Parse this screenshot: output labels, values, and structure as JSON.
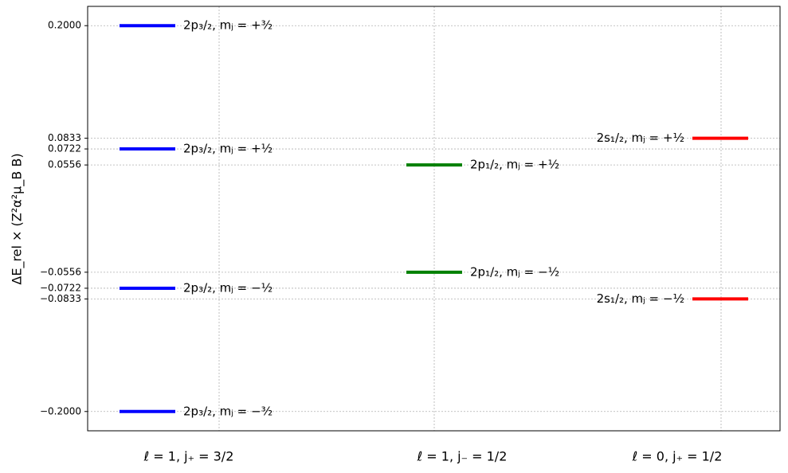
{
  "chart_data": {
    "type": "levels",
    "ylabel": "ΔE_rel × (Z²α²μ_B B)",
    "ylim": [
      -0.22,
      0.22
    ],
    "yticks": [
      {
        "value": 0.2,
        "label": "0.2000"
      },
      {
        "value": 0.0833,
        "label": "0.0833"
      },
      {
        "value": 0.0722,
        "label": "0.0722"
      },
      {
        "value": 0.0556,
        "label": "0.0556"
      },
      {
        "value": -0.0556,
        "label": "−0.0556"
      },
      {
        "value": -0.0722,
        "label": "−0.0722"
      },
      {
        "value": -0.0833,
        "label": "−0.0833"
      },
      {
        "value": -0.2,
        "label": "−0.2000"
      }
    ],
    "grid": true,
    "series": [
      {
        "name": "ℓ = 1, j₊ = 3/2",
        "color": "#0000ff",
        "values": [
          0.2,
          0.0722,
          -0.0722,
          -0.2
        ],
        "value_labels": [
          "2p₃/₂, mⱼ = +³⁄₂",
          "2p₃/₂, mⱼ = +¹⁄₂",
          "2p₃/₂, mⱼ = −¹⁄₂",
          "2p₃/₂, mⱼ = −³⁄₂"
        ]
      },
      {
        "name": "ℓ = 1, j₋ = 1/2",
        "color": "#008000",
        "values": [
          0.0556,
          -0.0556
        ],
        "value_labels": [
          "2p₁/₂, mⱼ = +¹⁄₂",
          "2p₁/₂, mⱼ = −¹⁄₂"
        ]
      },
      {
        "name": "ℓ = 0, j₊ = 1/2",
        "color": "#ff0000",
        "values": [
          0.0833,
          -0.0833
        ],
        "value_labels": [
          "2s₁/₂, mⱼ = +¹⁄₂",
          "2s₁/₂, mⱼ = −¹⁄₂"
        ]
      }
    ]
  }
}
